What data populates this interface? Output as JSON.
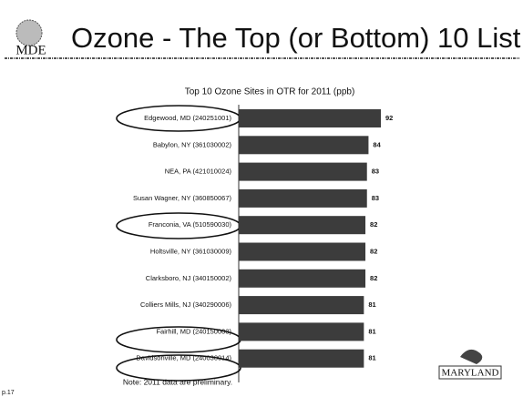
{
  "slide_title": "Ozone - The Top (or Bottom) 10 List",
  "logo_text": "MDE",
  "state_logo_text": "MARYLAND",
  "page_number": "p.17",
  "note": "Note: 2011 data are preliminary.",
  "chart_data": {
    "type": "hbar",
    "title": "Top 10 Ozone Sites in OTR for 2011 (ppb)",
    "categories": [
      "Edgewood, MD (240251001)",
      "Babylon, NY (361030002)",
      "NEA, PA (421010024)",
      "Susan Wagner, NY (360850067)",
      "Franconia, VA (510590030)",
      "Holtsville, NY (361030009)",
      "Clarksboro, NJ (340150002)",
      "Colliers Mills, NJ (340290006)",
      "Fairhill, MD (240150003)",
      "Davidsonville, MD (240030014)"
    ],
    "values": [
      92,
      84,
      83,
      83,
      82,
      82,
      82,
      81,
      81,
      81
    ],
    "color": "#3c3c3c"
  }
}
